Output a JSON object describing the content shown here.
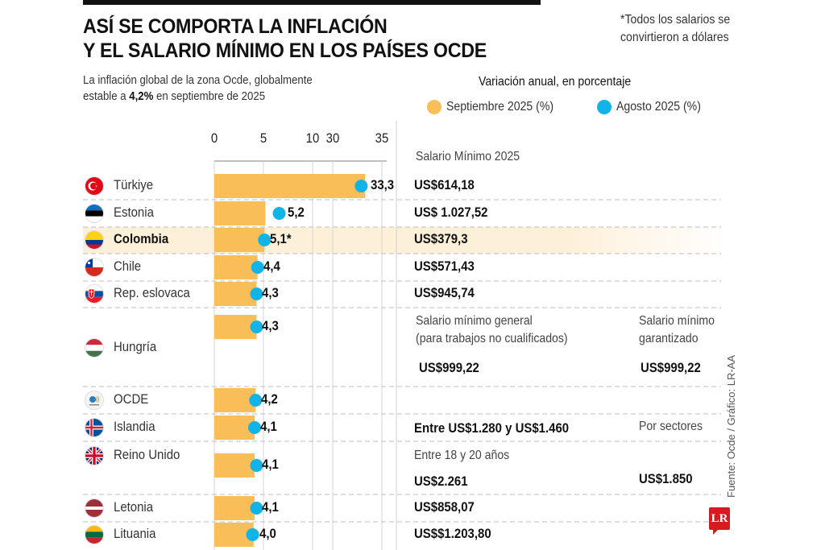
{
  "header": {
    "title_line1": "ASÍ SE COMPORTA LA INFLACIÓN",
    "title_line2": "Y EL SALARIO MÍNIMO EN LOS PAÍSES OCDE",
    "subtitle_line1": "La inflación global de la zona Ocde, globalmente",
    "subtitle_line2_pre": "estable a ",
    "subtitle_line2_bold": "4,2%",
    "subtitle_line2_post": " en septiembre de 2025",
    "note_line1": "*Todos los salarios se",
    "note_line2": "convirtieron a dólares"
  },
  "legend": {
    "title": "Variación anual, en porcentaje",
    "items": [
      {
        "label": "Septiembre 2025 (%)",
        "color": "#F9BE57"
      },
      {
        "label": "Agosto 2025 (%)",
        "color": "#12B4E8"
      }
    ]
  },
  "salary_header": "Salario Mínimo 2025",
  "salary_extra": {
    "hungria_general_label_1": "Salario mínimo general",
    "hungria_general_label_2": "(para trabajos no cualificados)",
    "hungria_general_value": "US$999,22",
    "hungria_guaranteed_label_1": "Salario mínimo",
    "hungria_guaranteed_label_2": "garantizado",
    "hungria_guaranteed_value": "US$999,22",
    "islandia_value": "Entre US$1.280 y US$1.460",
    "islandia_note": "Por sectores",
    "reino_unido_label": "Entre 18 y 20 años",
    "reino_unido_value": "US$2.261",
    "reino_unido_value2": "US$1.850"
  },
  "source": "Fuente: Ocde  / Gráfico: LR-AA",
  "logo": "LR",
  "chart_data": {
    "type": "bar",
    "title": "Así se comporta la inflación y el salario mínimo en los países OCDE",
    "xlabel": "",
    "ylabel": "",
    "axis": {
      "ticks": [
        "0",
        "5",
        "10",
        "30",
        "35"
      ],
      "broken": true,
      "segments": [
        [
          0,
          10
        ],
        [
          30,
          35
        ]
      ]
    },
    "categories": [
      "Türkiye",
      "Estonia",
      "Colombia",
      "Chile",
      "Rep. eslovaca",
      "Hungría",
      "OCDE",
      "Islandia",
      "Reino Unido",
      "Letonia",
      "Lituania"
    ],
    "series": [
      {
        "name": "Septiembre 2025 (%)",
        "type": "bar",
        "color": "#F9BE57",
        "values": [
          33.3,
          5.2,
          5.1,
          4.4,
          4.3,
          4.3,
          4.2,
          4.1,
          4.1,
          4.1,
          4.0
        ]
      },
      {
        "name": "Agosto 2025 (%)",
        "type": "dot",
        "color": "#12B4E8",
        "values": [
          32.9,
          6.6,
          5.1,
          4.4,
          4.3,
          4.3,
          4.2,
          4.1,
          4.3,
          4.3,
          3.9
        ]
      }
    ],
    "value_labels": [
      "33,3",
      "5,2",
      "5,1*",
      "4,4",
      "4,3",
      "4,3",
      "4,2",
      "4,1",
      "4,1",
      "4,1",
      "4,0"
    ],
    "highlight": "Colombia",
    "highlight_color": "#FDF0D8"
  },
  "rows": [
    {
      "country": "Türkiye",
      "flag": "turkey-flag",
      "salary": "US$614,18"
    },
    {
      "country": "Estonia",
      "flag": "estonia-flag",
      "salary": "US$ 1.027,52"
    },
    {
      "country": "Colombia",
      "flag": "colombia-flag",
      "salary": "US$379,3"
    },
    {
      "country": "Chile",
      "flag": "chile-flag",
      "salary": "US$571,43"
    },
    {
      "country": "Rep. eslovaca",
      "flag": "slovakia-flag",
      "salary": "US$945,74"
    },
    {
      "country": "Hungría",
      "flag": "hungary-flag",
      "salary": ""
    },
    {
      "country": "OCDE",
      "flag": "ocde-logo",
      "salary": ""
    },
    {
      "country": "Islandia",
      "flag": "iceland-flag",
      "salary": ""
    },
    {
      "country": "Reino Unido",
      "flag": "uk-flag",
      "salary": ""
    },
    {
      "country": "Letonia",
      "flag": "latvia-flag",
      "salary": "US$858,07"
    },
    {
      "country": "Lituania",
      "flag": "lithuania-flag",
      "salary": "US$$1.203,80"
    }
  ]
}
